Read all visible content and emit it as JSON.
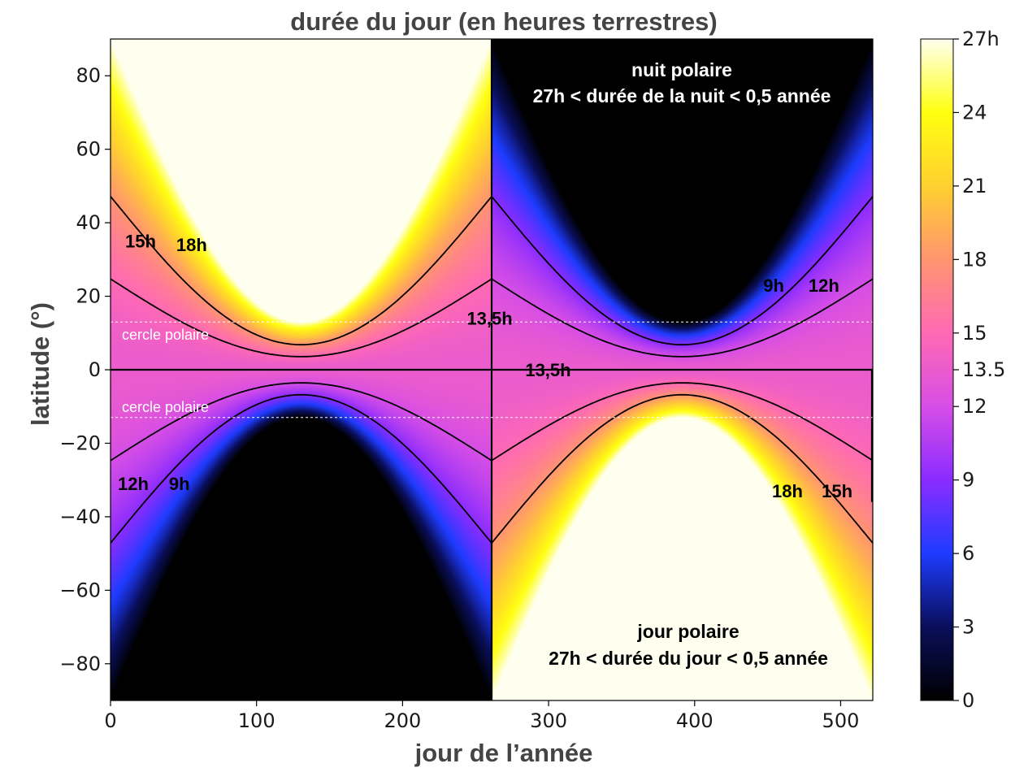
{
  "chart_data": {
    "type": "heatmap",
    "title": "durée du jour (en heures terrestres)",
    "xlabel": "jour de l’année",
    "ylabel": "latitude (°)",
    "xlim": [
      0,
      522
    ],
    "ylim": [
      -90,
      90
    ],
    "x_ticks": [
      "0",
      "100",
      "200",
      "300",
      "400",
      "500"
    ],
    "y_ticks": [
      "80",
      "60",
      "40",
      "20",
      "0",
      "−20",
      "−40",
      "−60",
      "−80"
    ],
    "x_tick_values": [
      0,
      100,
      200,
      300,
      400,
      500
    ],
    "y_tick_values": [
      80,
      60,
      40,
      20,
      0,
      -20,
      -40,
      -60,
      -80
    ],
    "colorbar": {
      "range": [
        0,
        27
      ],
      "tick_labels": [
        "27h",
        "24",
        "21",
        "18",
        "15",
        "13.5",
        "12",
        "9",
        "6",
        "3",
        "0"
      ],
      "tick_values": [
        27,
        24,
        21,
        18,
        15,
        13.5,
        12,
        9,
        6,
        3,
        0
      ],
      "colors": [
        "#000000",
        "#0a0f5a",
        "#1e3cff",
        "#8a2cff",
        "#d64ee6",
        "#ff6ab4",
        "#ff9570",
        "#ffd030",
        "#ffff10",
        "#fffff0"
      ]
    },
    "polar_circle_latitude": 13,
    "equinox_days": [
      0,
      261,
      522
    ],
    "solstice_days": [
      130.5,
      391.5
    ],
    "contour_levels": [
      9,
      12,
      13.5,
      15,
      18
    ],
    "contour_labels": [
      {
        "text": "15h",
        "day": 10,
        "lat": 35
      },
      {
        "text": "18h",
        "day": 45,
        "lat": 34
      },
      {
        "text": "12h",
        "day": 5,
        "lat": -31
      },
      {
        "text": "9h",
        "day": 40,
        "lat": -31
      },
      {
        "text": "9h",
        "day": 447,
        "lat": 23
      },
      {
        "text": "12h",
        "day": 478,
        "lat": 23
      },
      {
        "text": "18h",
        "day": 453,
        "lat": -33
      },
      {
        "text": "15h",
        "day": 487,
        "lat": -33
      },
      {
        "text": "13,5h",
        "day": 244,
        "lat": 14
      },
      {
        "text": "13,5h",
        "day": 284,
        "lat": 0
      }
    ],
    "annotations": {
      "polar_night": [
        "nuit polaire",
        "27h < durée de la nuit < 0,5 année"
      ],
      "polar_day": [
        "jour polaire",
        "27h < durée du jour < 0,5 année"
      ],
      "polar_circle": "cercle polaire"
    }
  }
}
